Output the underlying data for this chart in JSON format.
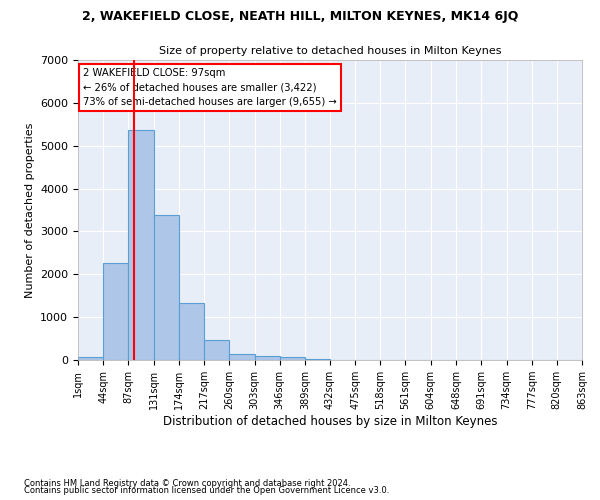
{
  "title1": "2, WAKEFIELD CLOSE, NEATH HILL, MILTON KEYNES, MK14 6JQ",
  "title2": "Size of property relative to detached houses in Milton Keynes",
  "xlabel": "Distribution of detached houses by size in Milton Keynes",
  "ylabel": "Number of detached properties",
  "footer1": "Contains HM Land Registry data © Crown copyright and database right 2024.",
  "footer2": "Contains public sector information licensed under the Open Government Licence v3.0.",
  "bar_color": "#aec6e8",
  "bar_edge_color": "#5a9fd4",
  "background_color": "#e8eef8",
  "grid_color": "#ffffff",
  "annotation_line1": "2 WAKEFIELD CLOSE: 97sqm",
  "annotation_line2": "← 26% of detached houses are smaller (3,422)",
  "annotation_line3": "73% of semi-detached houses are larger (9,655) →",
  "red_line_x": 97,
  "bin_edges": [
    1,
    44,
    87,
    131,
    174,
    217,
    260,
    303,
    346,
    389,
    432,
    475,
    518,
    561,
    604,
    648,
    691,
    734,
    777,
    820,
    863
  ],
  "bar_heights": [
    75,
    2275,
    5375,
    3375,
    1325,
    475,
    150,
    100,
    75,
    25,
    10,
    5,
    3,
    2,
    1,
    0,
    0,
    0,
    0,
    0
  ],
  "ylim": [
    0,
    7000
  ],
  "yticks": [
    0,
    1000,
    2000,
    3000,
    4000,
    5000,
    6000,
    7000
  ]
}
